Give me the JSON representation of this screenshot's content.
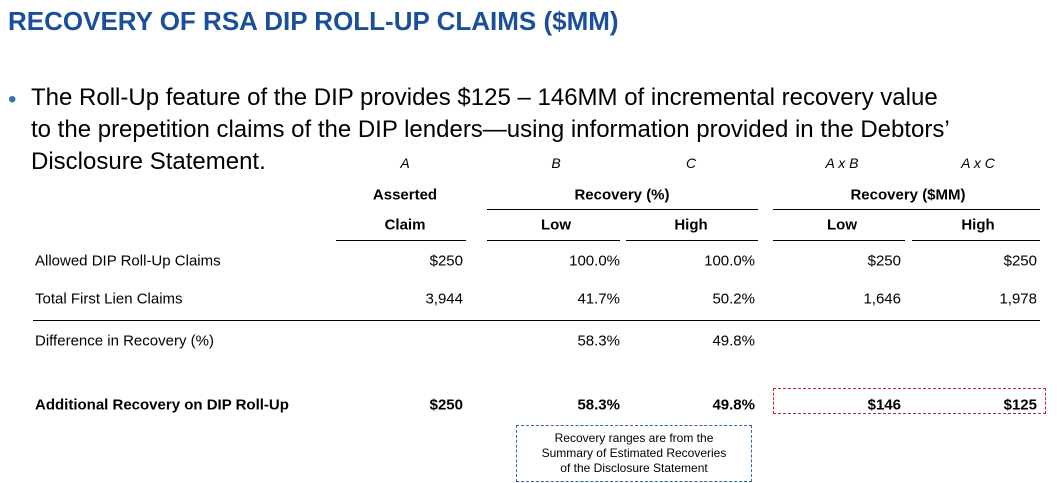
{
  "title": "RECOVERY OF RSA DIP ROLL-UP CLAIMS ($MM)",
  "bullet": {
    "lines": [
      "The Roll-Up feature of the DIP provides $125 – 146MM of incremental recovery value",
      "to the prepetition claims of the DIP lenders—using information provided in the Debtors’",
      "Disclosure Statement."
    ]
  },
  "table": {
    "column_letters": [
      "A",
      "B",
      "C",
      "A x B",
      "A x C"
    ],
    "group_headers": {
      "asserted": "Asserted",
      "recovery_pct": "Recovery (%)",
      "recovery_mm": "Recovery ($MM)"
    },
    "column_headers": [
      "Claim",
      "Low",
      "High",
      "Low",
      "High"
    ],
    "rows": [
      {
        "label": "Allowed DIP Roll-Up Claims",
        "claim": "$250",
        "rec_low": "100.0%",
        "rec_high": "100.0%",
        "mm_low": "$250",
        "mm_high": "$250"
      },
      {
        "label": "Total First Lien Claims",
        "claim": "3,944",
        "rec_low": "41.7%",
        "rec_high": "50.2%",
        "mm_low": "1,646",
        "mm_high": "1,978"
      },
      {
        "label": "Difference in Recovery (%)",
        "rec_low": "58.3%",
        "rec_high": "49.8%"
      },
      {
        "label": "Additional Recovery on DIP Roll-Up",
        "claim": "$250",
        "rec_low": "58.3%",
        "rec_high": "49.8%",
        "mm_low": "$146",
        "mm_high": "$125",
        "bold": true
      }
    ]
  },
  "note": {
    "lines": [
      "Recovery ranges are from the",
      "Summary of Estimated Recoveries",
      "of the Disclosure Statement"
    ]
  }
}
